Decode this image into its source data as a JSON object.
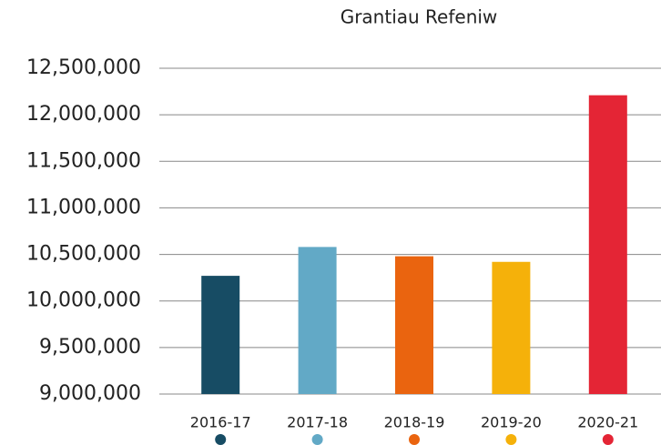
{
  "chart_data": {
    "type": "bar",
    "title": "Grantiau Refeniw",
    "categories": [
      "2016-17",
      "2017-18",
      "2018-19",
      "2019-20",
      "2020-21"
    ],
    "values": [
      10270000,
      10580000,
      10480000,
      10420000,
      12210000
    ],
    "colors": [
      "#174c64",
      "#62a9c6",
      "#ea640f",
      "#f5b10a",
      "#e42535"
    ],
    "ylim": [
      9000000,
      12500000
    ],
    "yticks": [
      {
        "value": 9000000,
        "label": "9,000,000"
      },
      {
        "value": 9500000,
        "label": "9,500,000"
      },
      {
        "value": 10000000,
        "label": "10,000,000"
      },
      {
        "value": 10500000,
        "label": "10,500,000"
      },
      {
        "value": 11000000,
        "label": "11,000,000"
      },
      {
        "value": 11500000,
        "label": "11,500,000"
      },
      {
        "value": 12000000,
        "label": "12,000,000"
      },
      {
        "value": 12500000,
        "label": "12,500,000"
      }
    ],
    "grid": true
  }
}
